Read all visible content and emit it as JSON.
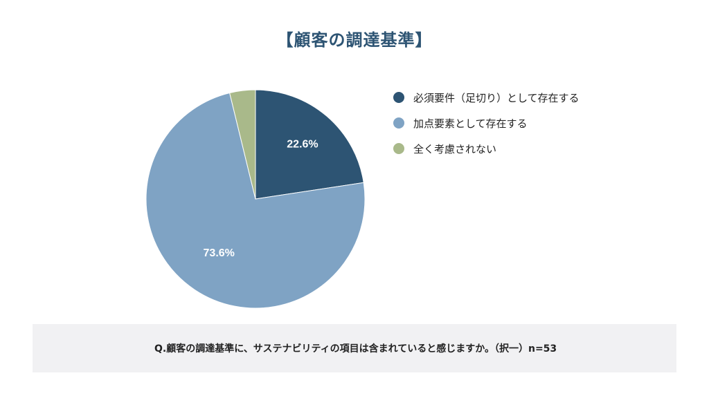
{
  "chart_data": {
    "type": "pie",
    "title": "【顧客の調達基準】",
    "categories": [
      "必須要件（足切り）として存在する",
      "加点要素として存在する",
      "全く考慮されない"
    ],
    "values": [
      22.6,
      73.6,
      3.8
    ],
    "colors": [
      "#2d5473",
      "#7fa3c4",
      "#a9b98a"
    ],
    "data_labels": [
      "22.6%",
      "73.6%",
      ""
    ],
    "legend_position": "right"
  },
  "footer": {
    "question": "Q.顧客の調達基準に、サステナビリティの項目は含まれていると感じますか。（択一）n=53"
  }
}
